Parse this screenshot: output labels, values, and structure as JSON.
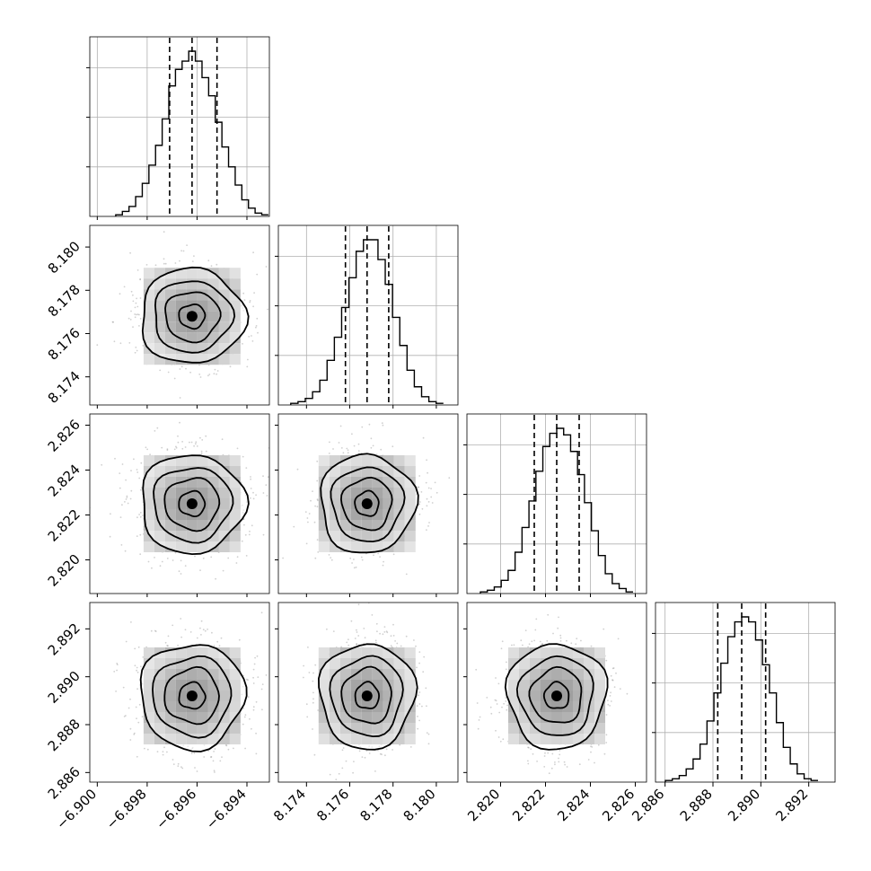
{
  "chart_data": {
    "type": "corner",
    "n_params": 4,
    "params": [
      {
        "index": 0,
        "ticks": [
          -6.9,
          -6.898,
          -6.896,
          -6.894
        ],
        "tick_labels": [
          "−6.900",
          "−6.898",
          "−6.896",
          "−6.894"
        ],
        "range": [
          -6.9003,
          -6.8931
        ],
        "quantiles": [
          -6.8971,
          -6.8962,
          -6.8952
        ],
        "hist_peak": 1.0,
        "hist": [
          0.01,
          0.03,
          0.06,
          0.12,
          0.2,
          0.31,
          0.43,
          0.59,
          0.79,
          0.89,
          0.94,
          1.0,
          0.94,
          0.84,
          0.73,
          0.57,
          0.42,
          0.3,
          0.19,
          0.1,
          0.05,
          0.02,
          0.01
        ],
        "grid": true
      },
      {
        "index": 1,
        "ticks": [
          8.174,
          8.176,
          8.178,
          8.18
        ],
        "tick_labels": [
          "8.174",
          "8.176",
          "8.178",
          "8.180"
        ],
        "range": [
          8.1727,
          8.181
        ],
        "quantiles": [
          8.1758,
          8.1768,
          8.1778
        ],
        "hist_peak": 1.0,
        "hist": [
          0.01,
          0.02,
          0.04,
          0.08,
          0.15,
          0.27,
          0.41,
          0.59,
          0.77,
          0.93,
          1.0,
          1.0,
          0.88,
          0.73,
          0.53,
          0.36,
          0.21,
          0.11,
          0.05,
          0.02,
          0.01
        ],
        "grid": true
      },
      {
        "index": 2,
        "ticks": [
          2.82,
          2.822,
          2.824,
          2.826
        ],
        "tick_labels": [
          "2.820",
          "2.822",
          "2.824",
          "2.826"
        ],
        "range": [
          2.8185,
          2.8265
        ],
        "quantiles": [
          2.8215,
          2.8225,
          2.8235
        ],
        "hist_peak": 1.0,
        "hist": [
          0.01,
          0.02,
          0.04,
          0.08,
          0.14,
          0.25,
          0.4,
          0.56,
          0.74,
          0.89,
          0.97,
          1.0,
          0.96,
          0.86,
          0.72,
          0.55,
          0.38,
          0.23,
          0.12,
          0.06,
          0.03,
          0.01
        ],
        "grid": true
      },
      {
        "index": 3,
        "ticks": [
          2.886,
          2.888,
          2.89,
          2.892
        ],
        "tick_labels": [
          "2.886",
          "2.888",
          "2.890",
          "2.892"
        ],
        "range": [
          2.8856,
          2.8931
        ],
        "quantiles": [
          2.8882,
          2.8892,
          2.8902
        ],
        "hist_peak": 1.0,
        "hist": [
          0.01,
          0.02,
          0.04,
          0.08,
          0.14,
          0.23,
          0.37,
          0.54,
          0.72,
          0.88,
          0.97,
          1.0,
          0.97,
          0.86,
          0.71,
          0.54,
          0.36,
          0.21,
          0.11,
          0.05,
          0.02,
          0.01
        ],
        "grid": true
      }
    ],
    "density_contours": true,
    "scatter_points": true,
    "colors": {
      "line": "#000000",
      "grid": "#b0b0b0",
      "scatter": "#555555"
    }
  }
}
